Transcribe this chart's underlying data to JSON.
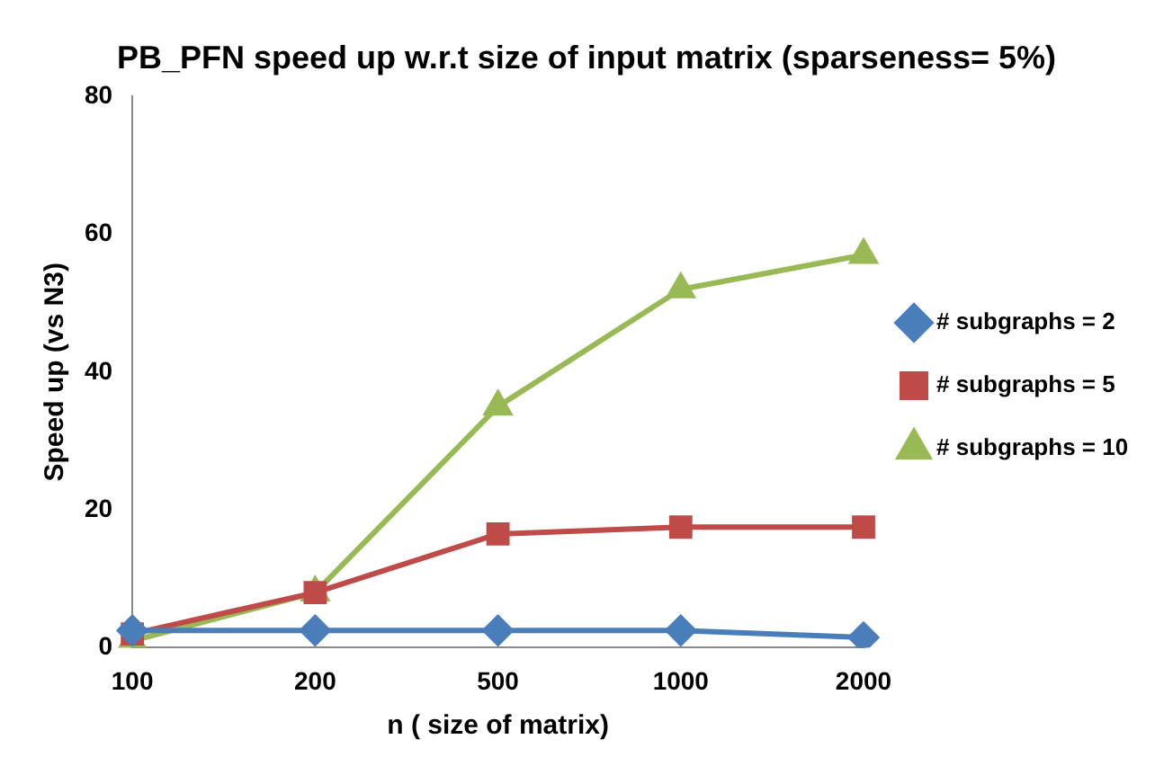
{
  "chart_data": {
    "type": "line",
    "title": "PB_PFN speed up w.r.t size of input matrix (sparseness= 5%)",
    "xlabel": "n ( size of matrix)",
    "ylabel": "Speed up (vs N3)",
    "categories": [
      "100",
      "200",
      "500",
      "1000",
      "2000"
    ],
    "series": [
      {
        "name": "# subgraphs = 2",
        "color": "#4a7ebb",
        "marker": "diamond",
        "values": [
          2.5,
          2.5,
          2.5,
          2.5,
          1.5
        ]
      },
      {
        "name": "# subgraphs = 5",
        "color": "#be4b48",
        "marker": "square",
        "values": [
          2,
          8,
          16.5,
          17.5,
          17.5
        ]
      },
      {
        "name": "# subgraphs = 10",
        "color": "#98b954",
        "marker": "triangle",
        "values": [
          1,
          8,
          35,
          52,
          57
        ]
      }
    ],
    "ylim": [
      0,
      80
    ],
    "yticks": [
      0,
      20,
      40,
      60,
      80
    ],
    "grid": false,
    "legend": "right",
    "line_style": "solid"
  }
}
